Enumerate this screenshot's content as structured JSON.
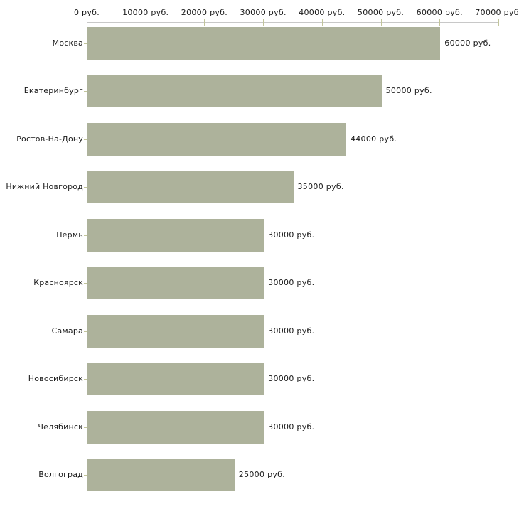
{
  "page": {
    "background": "#ffffff"
  },
  "chart_data": {
    "type": "bar",
    "orientation": "horizontal",
    "title": "",
    "xlabel": "",
    "ylabel": "",
    "grid": false,
    "legend": false,
    "categories": [
      "Москва",
      "Екатеринбург",
      "Ростов-На-Дону",
      "Нижний Новгород",
      "Пермь",
      "Красноярск",
      "Самара",
      "Новосибирск",
      "Челябинск",
      "Волгоград"
    ],
    "values": [
      60000,
      50000,
      44000,
      35000,
      30000,
      30000,
      30000,
      30000,
      30000,
      25000
    ],
    "value_labels": [
      "60000 руб.",
      "50000 руб.",
      "44000 руб.",
      "35000 руб.",
      "30000 руб.",
      "30000 руб.",
      "30000 руб.",
      "30000 руб.",
      "30000 руб.",
      "25000 руб."
    ],
    "x_axis": {
      "position": "top",
      "min": 0,
      "max": 70000,
      "ticks": [
        0,
        10000,
        20000,
        30000,
        40000,
        50000,
        60000,
        70000
      ],
      "tick_labels": [
        "0 руб.",
        "10000 руб.",
        "20000 руб.",
        "30000 руб.",
        "40000 руб.",
        "50000 руб.",
        "60000 руб.",
        "70000 руб."
      ]
    },
    "colors": {
      "bar": "#adb29b",
      "axis": "#c8c8c8",
      "tick": "#c2c59b",
      "text": "#1a1a1a"
    }
  }
}
